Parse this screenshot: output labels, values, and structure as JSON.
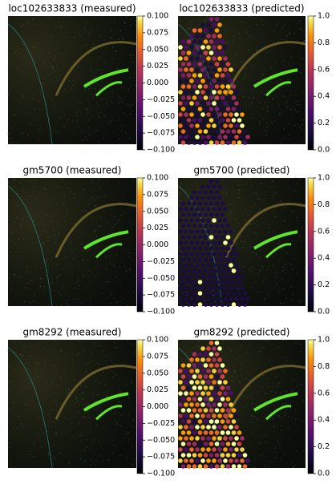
{
  "chart_data": [
    {
      "type": "image",
      "title": "loc102633833 (measured)",
      "colormap": "inferno",
      "clim": [
        -0.1,
        0.1
      ],
      "cticks": [
        {
          "value": 0.1,
          "label": "0.100"
        },
        {
          "value": 0.075,
          "label": "0.075"
        },
        {
          "value": 0.05,
          "label": "0.050"
        },
        {
          "value": 0.025,
          "label": "0.025"
        },
        {
          "value": 0,
          "label": "0.000"
        },
        {
          "value": -0.025,
          "label": "−0.025"
        },
        {
          "value": -0.05,
          "label": "−0.050"
        },
        {
          "value": -0.075,
          "label": "−0.075"
        },
        {
          "value": -0.1,
          "label": "−0.100"
        }
      ]
    },
    {
      "type": "image",
      "title": "loc102633833 (predicted)",
      "colormap": "inferno",
      "clim": [
        0,
        1
      ],
      "cticks": [
        {
          "value": 0,
          "label": "0.0"
        },
        0.2,
        0.4,
        0.6,
        0.8,
        {
          "value": 1,
          "label": "1.0"
        }
      ]
    },
    {
      "type": "image",
      "title": "gm5700 (measured)",
      "colormap": "inferno",
      "clim": [
        -0.1,
        0.1
      ],
      "cticks": [
        {
          "value": 0.1,
          "label": "0.100"
        },
        {
          "value": 0.075,
          "label": "0.075"
        },
        {
          "value": 0.05,
          "label": "0.050"
        },
        {
          "value": 0.025,
          "label": "0.025"
        },
        {
          "value": 0,
          "label": "0.000"
        },
        {
          "value": -0.025,
          "label": "−0.025"
        },
        {
          "value": -0.05,
          "label": "−0.050"
        },
        {
          "value": -0.075,
          "label": "−0.075"
        },
        {
          "value": -0.1,
          "label": "−0.100"
        }
      ]
    },
    {
      "type": "image",
      "title": "gm5700 (predicted)",
      "colormap": "inferno",
      "clim": [
        0,
        1
      ],
      "cticks": [
        {
          "value": 0,
          "label": "0.0"
        },
        0.2,
        0.4,
        0.6,
        0.8,
        {
          "value": 1,
          "label": "1.0"
        }
      ]
    },
    {
      "type": "image",
      "title": "gm8292 (measured)",
      "colormap": "inferno",
      "clim": [
        -0.1,
        0.1
      ],
      "cticks": [
        {
          "value": 0.1,
          "label": "0.100"
        },
        {
          "value": 0.075,
          "label": "0.075"
        },
        {
          "value": 0.05,
          "label": "0.050"
        },
        {
          "value": 0.025,
          "label": "0.025"
        },
        {
          "value": 0,
          "label": "0.000"
        },
        {
          "value": -0.025,
          "label": "−0.025"
        },
        {
          "value": -0.05,
          "label": "−0.050"
        },
        {
          "value": -0.075,
          "label": "−0.075"
        },
        {
          "value": -0.1,
          "label": "−0.100"
        }
      ]
    },
    {
      "type": "image",
      "title": "gm8292 (predicted)",
      "colormap": "inferno",
      "clim": [
        0,
        1
      ],
      "cticks": [
        {
          "value": 0,
          "label": "0.0"
        },
        0.2,
        0.4,
        0.6,
        0.8,
        {
          "value": 1,
          "label": "1.0"
        }
      ]
    }
  ]
}
